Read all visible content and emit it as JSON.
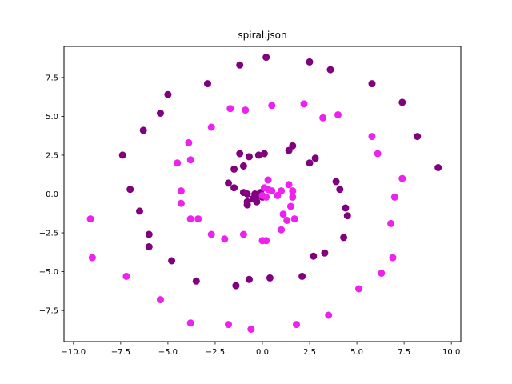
{
  "chart_data": {
    "type": "scatter",
    "title": "spiral.json",
    "xlabel": "",
    "ylabel": "",
    "xlim": [
      -10.5,
      10.5
    ],
    "ylim": [
      -9.5,
      9.5
    ],
    "xticks": [
      -10.0,
      -7.5,
      -5.0,
      -2.5,
      0.0,
      2.5,
      5.0,
      7.5,
      10.0
    ],
    "xtick_labels": [
      "−10.0",
      "−7.5",
      "−5.0",
      "−2.5",
      "0.0",
      "2.5",
      "5.0",
      "7.5",
      "10.0"
    ],
    "yticks": [
      -7.5,
      -5.0,
      -2.5,
      0.0,
      2.5,
      5.0,
      7.5
    ],
    "ytick_labels": [
      "−7.5",
      "−5.0",
      "−2.5",
      "0.0",
      "2.5",
      "5.0",
      "7.5"
    ],
    "grid": false,
    "legend": false,
    "series": [
      {
        "color": "#800080",
        "points": [
          [
            0.2,
            8.8
          ],
          [
            2.5,
            8.5
          ],
          [
            3.6,
            8.0
          ],
          [
            5.8,
            7.1
          ],
          [
            7.4,
            5.9
          ],
          [
            8.2,
            3.7
          ],
          [
            9.3,
            1.7
          ],
          [
            -1.2,
            8.3
          ],
          [
            -2.9,
            7.1
          ],
          [
            -5.0,
            6.4
          ],
          [
            -5.4,
            5.2
          ],
          [
            -6.3,
            4.1
          ],
          [
            -7.4,
            2.5
          ],
          [
            -7.0,
            0.3
          ],
          [
            -6.5,
            -1.1
          ],
          [
            -6.0,
            -2.6
          ],
          [
            -6.0,
            -3.4
          ],
          [
            -4.8,
            -4.3
          ],
          [
            -3.5,
            -5.6
          ],
          [
            -1.4,
            -5.9
          ],
          [
            -0.7,
            -5.5
          ],
          [
            0.4,
            -5.4
          ],
          [
            2.1,
            -5.3
          ],
          [
            2.7,
            -4.0
          ],
          [
            3.3,
            -3.8
          ],
          [
            4.3,
            -2.8
          ],
          [
            4.5,
            -1.4
          ],
          [
            4.4,
            -0.9
          ],
          [
            4.1,
            0.3
          ],
          [
            3.9,
            0.8
          ],
          [
            2.8,
            2.3
          ],
          [
            2.5,
            2.0
          ],
          [
            1.6,
            3.1
          ],
          [
            1.4,
            2.8
          ],
          [
            0.1,
            2.6
          ],
          [
            -0.2,
            2.5
          ],
          [
            -0.7,
            2.4
          ],
          [
            -1.2,
            2.6
          ],
          [
            -1.0,
            1.8
          ],
          [
            -1.5,
            1.6
          ],
          [
            -1.8,
            0.7
          ],
          [
            -1.5,
            0.4
          ],
          [
            -1.0,
            0.1
          ],
          [
            -0.8,
            0.0
          ],
          [
            -0.4,
            0.0
          ],
          [
            -0.1,
            0.1
          ],
          [
            -0.2,
            -0.1
          ],
          [
            -0.5,
            -0.3
          ],
          [
            -0.8,
            -0.5
          ],
          [
            -0.8,
            -0.7
          ],
          [
            -0.3,
            -0.5
          ],
          [
            0.0,
            -0.2
          ]
        ]
      },
      {
        "color": "#ee22ee",
        "points": [
          [
            -9.1,
            -1.6
          ],
          [
            -9.0,
            -4.1
          ],
          [
            -7.2,
            -5.3
          ],
          [
            -5.4,
            -6.8
          ],
          [
            -3.8,
            -8.3
          ],
          [
            -1.8,
            -8.4
          ],
          [
            -0.6,
            -8.7
          ],
          [
            1.8,
            -8.4
          ],
          [
            3.5,
            -7.8
          ],
          [
            5.1,
            -6.1
          ],
          [
            6.3,
            -5.1
          ],
          [
            6.9,
            -4.1
          ],
          [
            6.8,
            -1.9
          ],
          [
            7.0,
            -0.2
          ],
          [
            7.4,
            1.0
          ],
          [
            6.1,
            2.6
          ],
          [
            5.8,
            3.7
          ],
          [
            4.0,
            5.1
          ],
          [
            3.2,
            4.9
          ],
          [
            2.2,
            5.8
          ],
          [
            0.5,
            5.7
          ],
          [
            -0.9,
            5.4
          ],
          [
            -1.7,
            5.5
          ],
          [
            -2.7,
            4.3
          ],
          [
            -3.9,
            3.3
          ],
          [
            -3.8,
            2.2
          ],
          [
            -4.5,
            2.0
          ],
          [
            -4.3,
            0.2
          ],
          [
            -4.3,
            -0.6
          ],
          [
            -3.8,
            -1.6
          ],
          [
            -3.4,
            -1.6
          ],
          [
            -2.7,
            -2.6
          ],
          [
            -2.0,
            -2.9
          ],
          [
            -1.0,
            -2.6
          ],
          [
            0.0,
            -3.0
          ],
          [
            0.2,
            -3.0
          ],
          [
            1.0,
            -2.3
          ],
          [
            1.3,
            -1.7
          ],
          [
            1.7,
            -1.6
          ],
          [
            1.1,
            -1.3
          ],
          [
            1.5,
            -0.8
          ],
          [
            1.6,
            -0.2
          ],
          [
            1.6,
            0.2
          ],
          [
            1.4,
            0.6
          ],
          [
            1.0,
            0.2
          ],
          [
            0.8,
            -0.1
          ],
          [
            0.5,
            0.2
          ],
          [
            0.3,
            0.3
          ],
          [
            0.3,
            0.9
          ],
          [
            0.1,
            0.4
          ],
          [
            0.0,
            -0.1
          ],
          [
            0.2,
            -0.2
          ]
        ]
      }
    ]
  }
}
